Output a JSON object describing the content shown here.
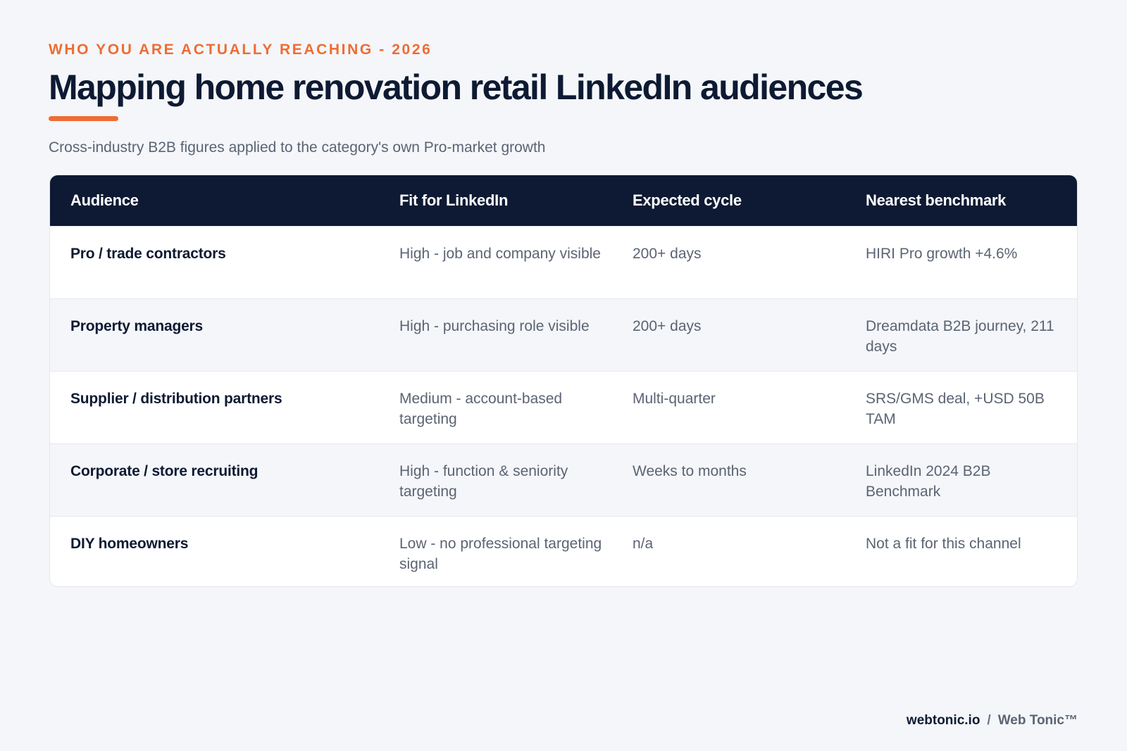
{
  "header": {
    "eyebrow": "WHO YOU ARE ACTUALLY REACHING - 2026",
    "title": "Mapping home renovation retail LinkedIn audiences",
    "subtitle": "Cross-industry B2B figures applied to the category's own Pro-market growth"
  },
  "colors": {
    "accent": "#ef6c33",
    "header_bg": "#0e1a33",
    "page_bg": "#f4f6f9"
  },
  "table": {
    "columns": [
      "Audience",
      "Fit for LinkedIn",
      "Expected cycle",
      "Nearest benchmark"
    ],
    "rows": [
      {
        "audience": "Pro / trade contractors",
        "fit": "High - job and company visible",
        "cycle": "200+ days",
        "benchmark": "HIRI Pro growth +4.6%"
      },
      {
        "audience": "Property managers",
        "fit": "High - purchasing role visible",
        "cycle": "200+ days",
        "benchmark": "Dreamdata B2B journey, 211 days"
      },
      {
        "audience": "Supplier / distribution partners",
        "fit": "Medium - account-based targeting",
        "cycle": "Multi-quarter",
        "benchmark": "SRS/GMS deal, +USD 50B TAM"
      },
      {
        "audience": "Corporate / store recruiting",
        "fit": "High - function & seniority targeting",
        "cycle": "Weeks to months",
        "benchmark": "LinkedIn 2024 B2B Benchmark"
      },
      {
        "audience": "DIY homeowners",
        "fit": "Low - no professional targeting signal",
        "cycle": "n/a",
        "benchmark": "Not a fit for this channel"
      }
    ]
  },
  "footer": {
    "domain": "webtonic.io",
    "separator": "/",
    "brand": "Web Tonic™"
  }
}
